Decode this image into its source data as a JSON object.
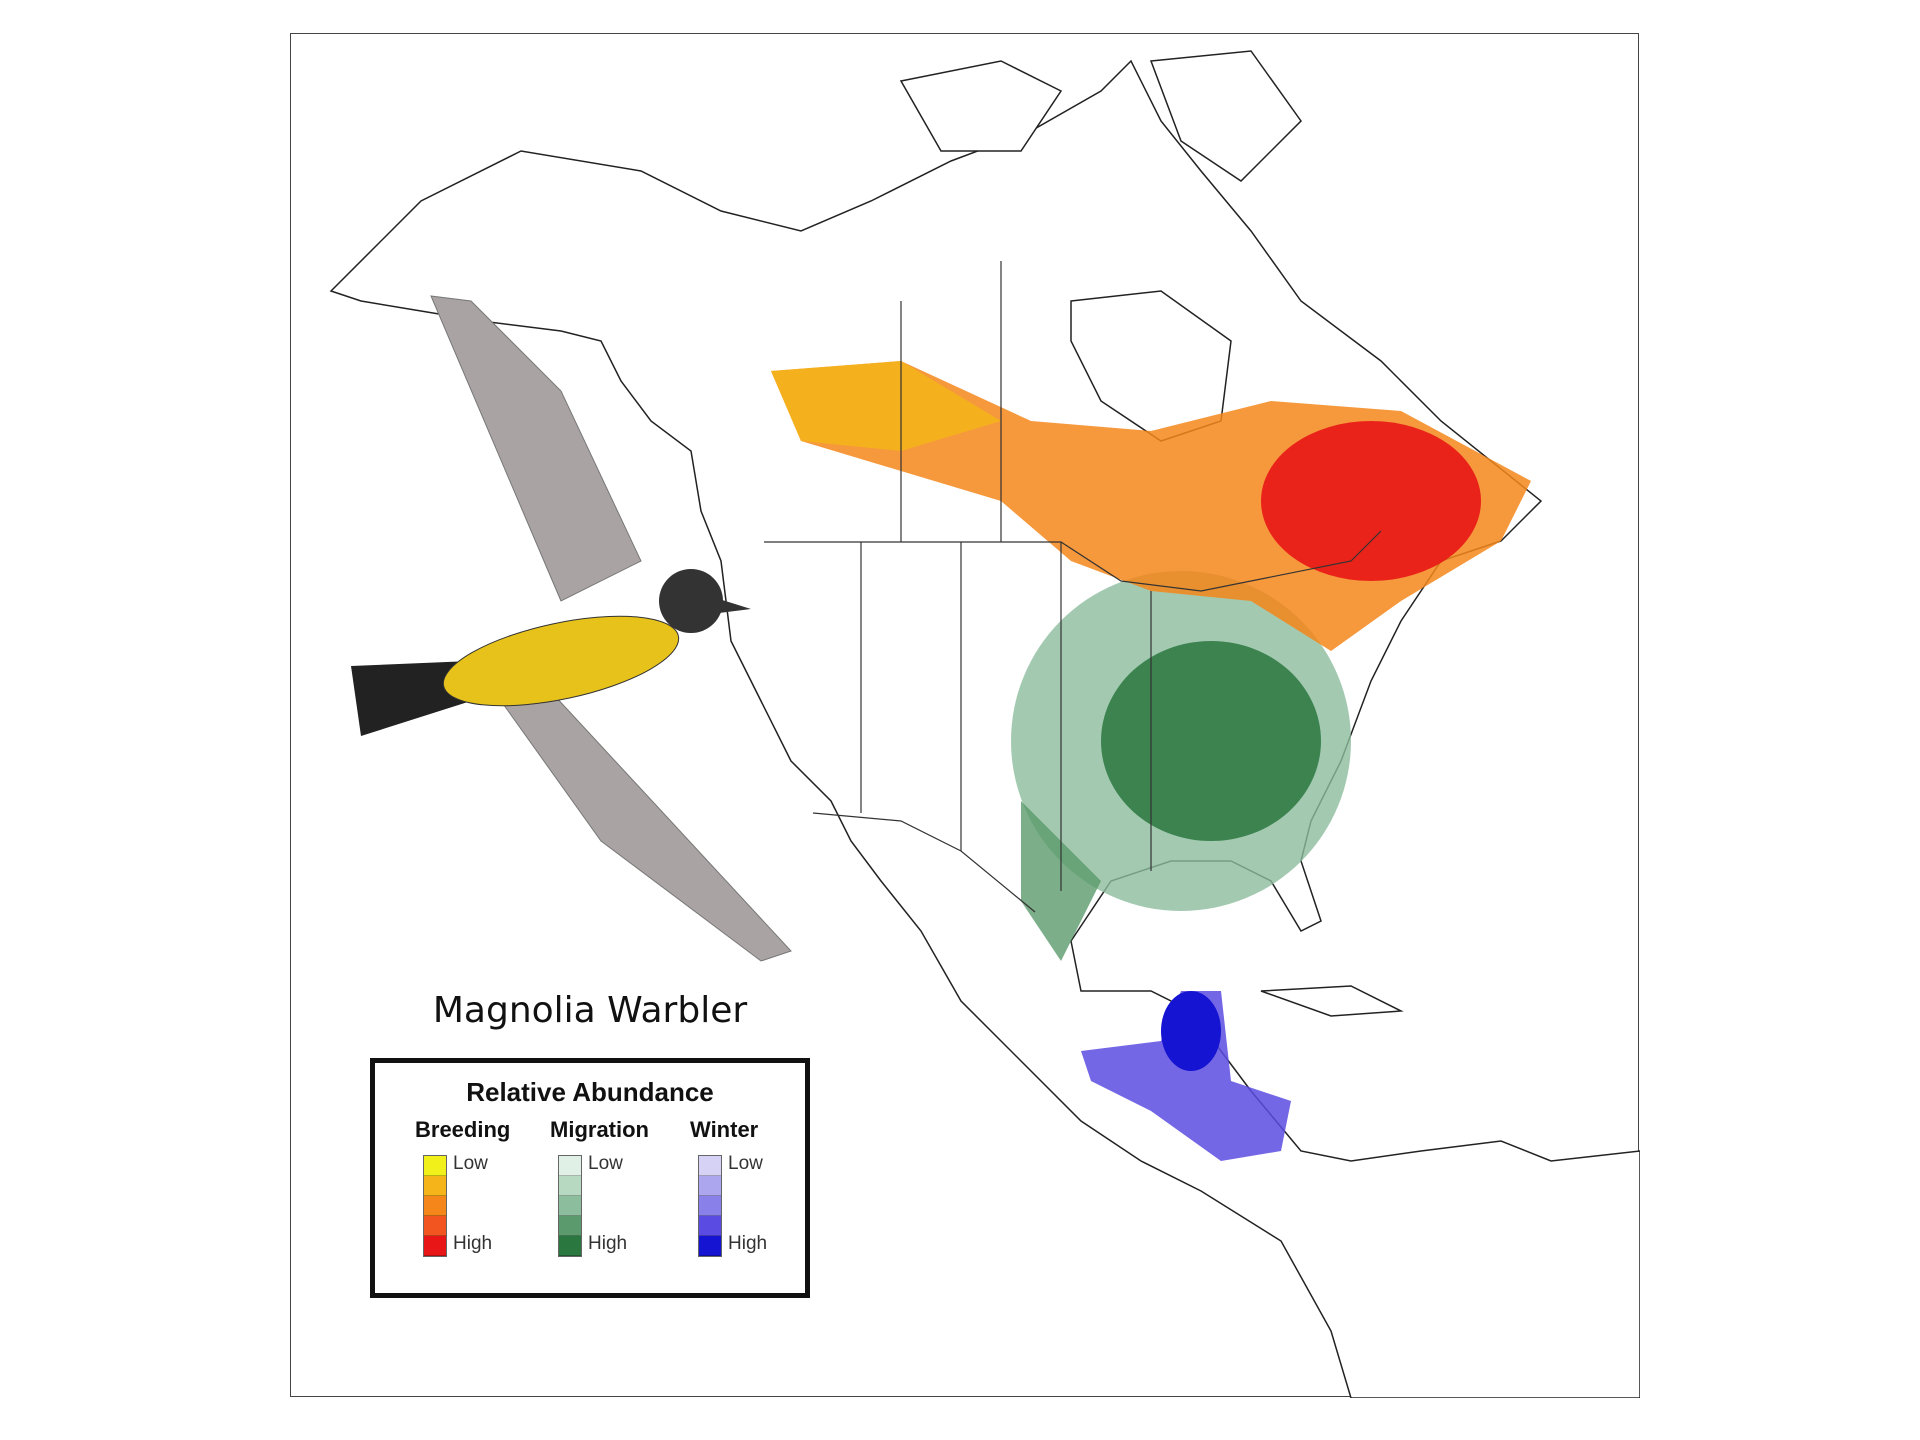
{
  "title": "Magnolia Warbler",
  "legend": {
    "title": "Relative Abundance",
    "low_label": "Low",
    "high_label": "High",
    "seasons": [
      {
        "name": "Breeding",
        "colors": [
          "#f2f01a",
          "#f5b41a",
          "#f5861a",
          "#f25520",
          "#e81616"
        ]
      },
      {
        "name": "Migration",
        "colors": [
          "#e0f0e6",
          "#b7d9c2",
          "#8cbd9c",
          "#5a9a6c",
          "#2a7740"
        ]
      },
      {
        "name": "Winter",
        "colors": [
          "#d6d2f5",
          "#aca6ee",
          "#8a80ea",
          "#5a4ce2",
          "#1414d2"
        ]
      }
    ]
  }
}
